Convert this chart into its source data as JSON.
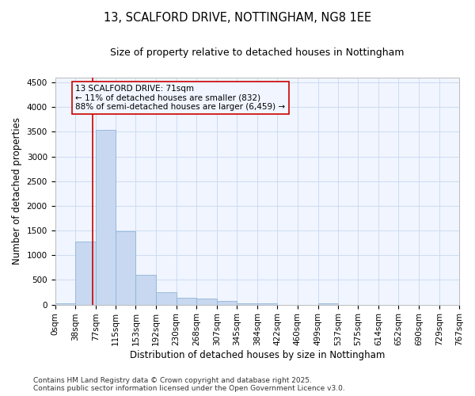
{
  "title_line1": "13, SCALFORD DRIVE, NOTTINGHAM, NG8 1EE",
  "title_line2": "Size of property relative to detached houses in Nottingham",
  "xlabel": "Distribution of detached houses by size in Nottingham",
  "ylabel": "Number of detached properties",
  "bar_color": "#c8d8f0",
  "bar_edge_color": "#90b4d8",
  "grid_color": "#c8d8f0",
  "background_color": "#ffffff",
  "plot_bg_color": "#f0f5ff",
  "vline_color": "#cc0000",
  "vline_x": 71,
  "annotation_text": "13 SCALFORD DRIVE: 71sqm\n← 11% of detached houses are smaller (832)\n88% of semi-detached houses are larger (6,459) →",
  "annotation_box_color": "#cc0000",
  "bin_edges": [
    0,
    38,
    77,
    115,
    153,
    192,
    230,
    268,
    307,
    345,
    384,
    422,
    460,
    499,
    537,
    575,
    614,
    652,
    690,
    729,
    767
  ],
  "bin_heights": [
    30,
    1280,
    3530,
    1490,
    600,
    250,
    130,
    115,
    70,
    30,
    20,
    0,
    0,
    30,
    0,
    0,
    0,
    0,
    0,
    0
  ],
  "ylim": [
    0,
    4600
  ],
  "yticks": [
    0,
    500,
    1000,
    1500,
    2000,
    2500,
    3000,
    3500,
    4000,
    4500
  ],
  "tick_labels": [
    "0sqm",
    "38sqm",
    "77sqm",
    "115sqm",
    "153sqm",
    "192sqm",
    "230sqm",
    "268sqm",
    "307sqm",
    "345sqm",
    "384sqm",
    "422sqm",
    "460sqm",
    "499sqm",
    "537sqm",
    "575sqm",
    "614sqm",
    "652sqm",
    "690sqm",
    "729sqm",
    "767sqm"
  ],
  "footer_text": "Contains HM Land Registry data © Crown copyright and database right 2025.\nContains public sector information licensed under the Open Government Licence v3.0.",
  "title_fontsize": 10.5,
  "subtitle_fontsize": 9,
  "axis_label_fontsize": 8.5,
  "tick_fontsize": 7.5,
  "annotation_fontsize": 7.5,
  "footer_fontsize": 6.5
}
